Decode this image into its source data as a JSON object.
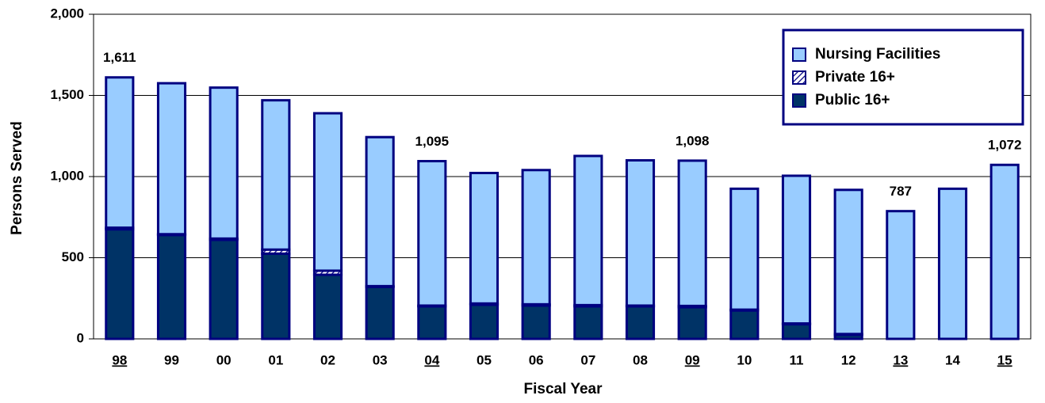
{
  "chart_data": {
    "type": "stacked-bar",
    "x_label": "Fiscal Year",
    "y_label": "Persons Served",
    "categories": [
      "98",
      "99",
      "00",
      "01",
      "02",
      "03",
      "04",
      "05",
      "06",
      "07",
      "08",
      "09",
      "10",
      "11",
      "12",
      "13",
      "14",
      "15"
    ],
    "series": [
      {
        "name": "Nursing Facilities",
        "color": "#99CCFF",
        "values": [
          926,
          930,
          930,
          920,
          970,
          918,
          890,
          804,
          827,
          919,
          895,
          895,
          745,
          910,
          888,
          787,
          925,
          1072
        ]
      },
      {
        "name": "Private 16+",
        "color": "#000080",
        "hatch": true,
        "values": [
          10,
          5,
          8,
          25,
          25,
          5,
          5,
          8,
          8,
          8,
          5,
          8,
          5,
          5,
          5,
          0,
          0,
          0
        ]
      },
      {
        "name": "Public 16+",
        "color": "#003366",
        "values": [
          675,
          640,
          610,
          525,
          395,
          320,
          200,
          210,
          205,
          200,
          200,
          195,
          175,
          90,
          25,
          0,
          0,
          0
        ]
      }
    ],
    "totals": [
      1611,
      null,
      null,
      null,
      null,
      null,
      1095,
      null,
      null,
      null,
      null,
      1098,
      null,
      null,
      null,
      787,
      null,
      1072
    ],
    "total_labels": [
      "1,611",
      null,
      null,
      null,
      null,
      null,
      "1,095",
      null,
      null,
      null,
      null,
      "1,098",
      null,
      null,
      null,
      "787",
      null,
      "1,072"
    ],
    "ylim": [
      0,
      2000
    ],
    "yticks": [
      0,
      500,
      {
        "value": 1000,
        "label": "1,000"
      },
      {
        "value": 1500,
        "label": "1,500"
      },
      {
        "value": 2000,
        "label": "2,000"
      }
    ],
    "grid": true,
    "legend": "upper right",
    "bar_outline": "#000080"
  }
}
